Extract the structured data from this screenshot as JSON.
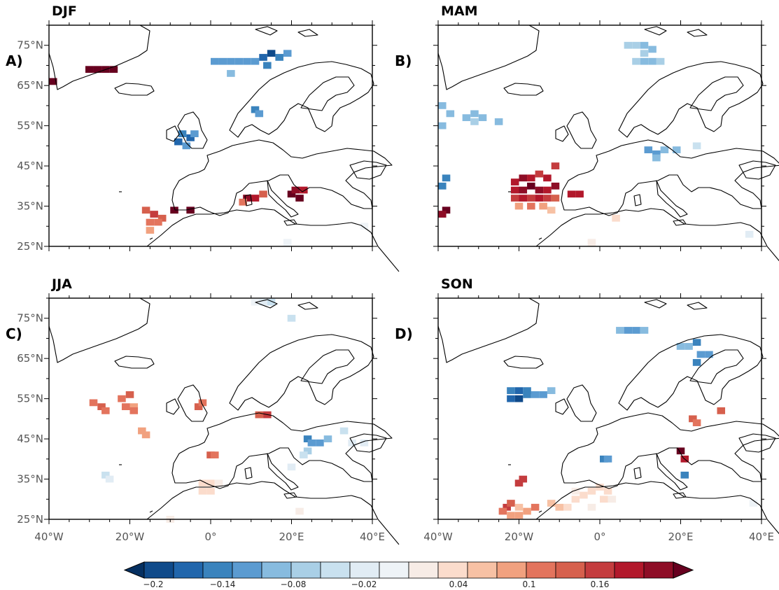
{
  "panels": [
    {
      "id": "A",
      "season": "DJF",
      "letter": "A)",
      "anomaly_cells": [
        {
          "lon": -39,
          "lat": 66,
          "v": 0.2
        },
        {
          "lon": -30,
          "lat": 69,
          "v": 0.2
        },
        {
          "lon": -28,
          "lat": 69,
          "v": 0.2
        },
        {
          "lon": -26,
          "lat": 69,
          "v": 0.2
        },
        {
          "lon": -24,
          "lat": 69,
          "v": 0.2
        },
        {
          "lon": 1,
          "lat": 71,
          "v": -0.12
        },
        {
          "lon": 3,
          "lat": 71,
          "v": -0.12
        },
        {
          "lon": 5,
          "lat": 71,
          "v": -0.12
        },
        {
          "lon": 7,
          "lat": 71,
          "v": -0.12
        },
        {
          "lon": 9,
          "lat": 71,
          "v": -0.12
        },
        {
          "lon": 11,
          "lat": 71,
          "v": -0.12
        },
        {
          "lon": 13,
          "lat": 72,
          "v": -0.16
        },
        {
          "lon": 15,
          "lat": 73,
          "v": -0.18
        },
        {
          "lon": 17,
          "lat": 72,
          "v": -0.14
        },
        {
          "lon": 14,
          "lat": 70,
          "v": -0.14
        },
        {
          "lon": 19,
          "lat": 73,
          "v": -0.12
        },
        {
          "lon": 5,
          "lat": 68,
          "v": -0.1
        },
        {
          "lon": 11,
          "lat": 59,
          "v": -0.14
        },
        {
          "lon": 12,
          "lat": 58,
          "v": -0.12
        },
        {
          "lon": -7,
          "lat": 53,
          "v": -0.14
        },
        {
          "lon": -5,
          "lat": 52,
          "v": -0.16
        },
        {
          "lon": -8,
          "lat": 51,
          "v": -0.16
        },
        {
          "lon": -6,
          "lat": 50,
          "v": -0.12
        },
        {
          "lon": -4,
          "lat": 53,
          "v": -0.12
        },
        {
          "lon": -16,
          "lat": 34,
          "v": 0.12
        },
        {
          "lon": -14,
          "lat": 33,
          "v": 0.14
        },
        {
          "lon": -12,
          "lat": 32,
          "v": 0.12
        },
        {
          "lon": -15,
          "lat": 31,
          "v": 0.1
        },
        {
          "lon": -13,
          "lat": 31,
          "v": 0.1
        },
        {
          "lon": -15,
          "lat": 29,
          "v": 0.08
        },
        {
          "lon": -9,
          "lat": 34,
          "v": 0.2
        },
        {
          "lon": -5,
          "lat": 34,
          "v": 0.2
        },
        {
          "lon": 9,
          "lat": 37,
          "v": 0.18
        },
        {
          "lon": 11,
          "lat": 37,
          "v": 0.16
        },
        {
          "lon": 8,
          "lat": 36,
          "v": 0.1
        },
        {
          "lon": 13,
          "lat": 38,
          "v": 0.12
        },
        {
          "lon": 20,
          "lat": 38,
          "v": 0.2
        },
        {
          "lon": 22,
          "lat": 37,
          "v": 0.2
        },
        {
          "lon": 21,
          "lat": 39,
          "v": 0.18
        },
        {
          "lon": 23,
          "lat": 39,
          "v": 0.16
        },
        {
          "lon": 19,
          "lat": 26,
          "v": -0.02
        },
        {
          "lon": 38,
          "lat": 30,
          "v": -0.02
        }
      ]
    },
    {
      "id": "B",
      "season": "MAM",
      "letter": "B)",
      "anomaly_cells": [
        {
          "lon": 7,
          "lat": 75,
          "v": -0.08
        },
        {
          "lon": 9,
          "lat": 75,
          "v": -0.08
        },
        {
          "lon": 11,
          "lat": 75,
          "v": -0.1
        },
        {
          "lon": 13,
          "lat": 74,
          "v": -0.1
        },
        {
          "lon": 11,
          "lat": 73,
          "v": -0.08
        },
        {
          "lon": 9,
          "lat": 71,
          "v": -0.08
        },
        {
          "lon": 11,
          "lat": 71,
          "v": -0.1
        },
        {
          "lon": 13,
          "lat": 71,
          "v": -0.1
        },
        {
          "lon": 15,
          "lat": 71,
          "v": -0.08
        },
        {
          "lon": -39,
          "lat": 60,
          "v": -0.1
        },
        {
          "lon": -37,
          "lat": 58,
          "v": -0.1
        },
        {
          "lon": -39,
          "lat": 55,
          "v": -0.1
        },
        {
          "lon": -33,
          "lat": 57,
          "v": -0.1
        },
        {
          "lon": -31,
          "lat": 58,
          "v": -0.1
        },
        {
          "lon": -29,
          "lat": 57,
          "v": -0.1
        },
        {
          "lon": -31,
          "lat": 56,
          "v": -0.08
        },
        {
          "lon": -25,
          "lat": 56,
          "v": -0.1
        },
        {
          "lon": 12,
          "lat": 49,
          "v": -0.12
        },
        {
          "lon": 14,
          "lat": 48,
          "v": -0.12
        },
        {
          "lon": 16,
          "lat": 49,
          "v": -0.1
        },
        {
          "lon": 19,
          "lat": 49,
          "v": -0.1
        },
        {
          "lon": 24,
          "lat": 50,
          "v": -0.06
        },
        {
          "lon": 14,
          "lat": 47,
          "v": -0.1
        },
        {
          "lon": -38,
          "lat": 42,
          "v": -0.14
        },
        {
          "lon": -39,
          "lat": 40,
          "v": -0.14
        },
        {
          "lon": -38,
          "lat": 34,
          "v": 0.2
        },
        {
          "lon": -39,
          "lat": 33,
          "v": 0.18
        },
        {
          "lon": -21,
          "lat": 41,
          "v": 0.16
        },
        {
          "lon": -19,
          "lat": 42,
          "v": 0.18
        },
        {
          "lon": -17,
          "lat": 42,
          "v": 0.16
        },
        {
          "lon": -15,
          "lat": 43,
          "v": 0.14
        },
        {
          "lon": -13,
          "lat": 42,
          "v": 0.16
        },
        {
          "lon": -11,
          "lat": 45,
          "v": 0.14
        },
        {
          "lon": -21,
          "lat": 39,
          "v": 0.16
        },
        {
          "lon": -19,
          "lat": 39,
          "v": 0.18
        },
        {
          "lon": -17,
          "lat": 40,
          "v": 0.2
        },
        {
          "lon": -15,
          "lat": 39,
          "v": 0.18
        },
        {
          "lon": -13,
          "lat": 39,
          "v": 0.16
        },
        {
          "lon": -11,
          "lat": 40,
          "v": 0.18
        },
        {
          "lon": -21,
          "lat": 37,
          "v": 0.14
        },
        {
          "lon": -19,
          "lat": 37,
          "v": 0.16
        },
        {
          "lon": -17,
          "lat": 37,
          "v": 0.14
        },
        {
          "lon": -15,
          "lat": 37,
          "v": 0.16
        },
        {
          "lon": -13,
          "lat": 37,
          "v": 0.14
        },
        {
          "lon": -11,
          "lat": 37,
          "v": 0.12
        },
        {
          "lon": -20,
          "lat": 35,
          "v": 0.08
        },
        {
          "lon": -17,
          "lat": 35,
          "v": 0.1
        },
        {
          "lon": -14,
          "lat": 35,
          "v": 0.08
        },
        {
          "lon": -12,
          "lat": 34,
          "v": 0.06
        },
        {
          "lon": -7,
          "lat": 38,
          "v": 0.16
        },
        {
          "lon": -5,
          "lat": 38,
          "v": 0.16
        },
        {
          "lon": 4,
          "lat": 32,
          "v": 0.04
        },
        {
          "lon": -2,
          "lat": 26,
          "v": 0.02
        },
        {
          "lon": 37,
          "lat": 28,
          "v": -0.04
        }
      ]
    },
    {
      "id": "C",
      "season": "JJA",
      "letter": "C)",
      "anomaly_cells": [
        {
          "lon": 13,
          "lat": 79,
          "v": -0.04
        },
        {
          "lon": 15,
          "lat": 79,
          "v": -0.06
        },
        {
          "lon": 11,
          "lat": 79,
          "v": -0.02
        },
        {
          "lon": 20,
          "lat": 75,
          "v": -0.06
        },
        {
          "lon": -29,
          "lat": 54,
          "v": 0.1
        },
        {
          "lon": -27,
          "lat": 53,
          "v": 0.12
        },
        {
          "lon": -26,
          "lat": 52,
          "v": 0.1
        },
        {
          "lon": -22,
          "lat": 55,
          "v": 0.1
        },
        {
          "lon": -20,
          "lat": 56,
          "v": 0.12
        },
        {
          "lon": -21,
          "lat": 53,
          "v": 0.1
        },
        {
          "lon": -19,
          "lat": 53,
          "v": 0.08
        },
        {
          "lon": -19,
          "lat": 52,
          "v": 0.1
        },
        {
          "lon": -17,
          "lat": 47,
          "v": 0.08
        },
        {
          "lon": -16,
          "lat": 46,
          "v": 0.08
        },
        {
          "lon": -3,
          "lat": 53,
          "v": 0.12
        },
        {
          "lon": -2,
          "lat": 54,
          "v": 0.1
        },
        {
          "lon": 12,
          "lat": 51,
          "v": 0.12
        },
        {
          "lon": 14,
          "lat": 51,
          "v": 0.14
        },
        {
          "lon": 0,
          "lat": 41,
          "v": 0.12
        },
        {
          "lon": 1,
          "lat": 41,
          "v": 0.1
        },
        {
          "lon": 24,
          "lat": 45,
          "v": -0.14
        },
        {
          "lon": 25,
          "lat": 44,
          "v": -0.12
        },
        {
          "lon": 27,
          "lat": 44,
          "v": -0.12
        },
        {
          "lon": 29,
          "lat": 45,
          "v": -0.1
        },
        {
          "lon": 24,
          "lat": 42,
          "v": -0.08
        },
        {
          "lon": 23,
          "lat": 41,
          "v": -0.06
        },
        {
          "lon": 33,
          "lat": 47,
          "v": -0.06
        },
        {
          "lon": 35,
          "lat": 44,
          "v": -0.04
        },
        {
          "lon": 38,
          "lat": 44,
          "v": -0.04
        },
        {
          "lon": 20,
          "lat": 38,
          "v": -0.04
        },
        {
          "lon": -26,
          "lat": 36,
          "v": -0.06
        },
        {
          "lon": -25,
          "lat": 35,
          "v": -0.04
        },
        {
          "lon": -2,
          "lat": 34,
          "v": 0.04
        },
        {
          "lon": 0,
          "lat": 34,
          "v": 0.04
        },
        {
          "lon": 2,
          "lat": 34,
          "v": 0.02
        },
        {
          "lon": -2,
          "lat": 32,
          "v": 0.04
        },
        {
          "lon": 0,
          "lat": 32,
          "v": 0.04
        },
        {
          "lon": 22,
          "lat": 27,
          "v": 0.02
        },
        {
          "lon": -10,
          "lat": 25,
          "v": 0.0
        }
      ]
    },
    {
      "id": "D",
      "season": "SON",
      "letter": "D)",
      "anomaly_cells": [
        {
          "lon": 5,
          "lat": 72,
          "v": -0.1
        },
        {
          "lon": 7,
          "lat": 72,
          "v": -0.12
        },
        {
          "lon": 9,
          "lat": 72,
          "v": -0.12
        },
        {
          "lon": 11,
          "lat": 72,
          "v": -0.1
        },
        {
          "lon": 20,
          "lat": 68,
          "v": -0.1
        },
        {
          "lon": 22,
          "lat": 68,
          "v": -0.1
        },
        {
          "lon": 24,
          "lat": 69,
          "v": -0.14
        },
        {
          "lon": 25,
          "lat": 66,
          "v": -0.12
        },
        {
          "lon": 27,
          "lat": 66,
          "v": -0.12
        },
        {
          "lon": 24,
          "lat": 64,
          "v": -0.14
        },
        {
          "lon": -22,
          "lat": 57,
          "v": -0.14
        },
        {
          "lon": -20,
          "lat": 57,
          "v": -0.16
        },
        {
          "lon": -18,
          "lat": 57,
          "v": -0.14
        },
        {
          "lon": -22,
          "lat": 55,
          "v": -0.16
        },
        {
          "lon": -20,
          "lat": 55,
          "v": -0.18
        },
        {
          "lon": -18,
          "lat": 56,
          "v": -0.14
        },
        {
          "lon": -16,
          "lat": 56,
          "v": -0.12
        },
        {
          "lon": -14,
          "lat": 56,
          "v": -0.12
        },
        {
          "lon": -12,
          "lat": 57,
          "v": -0.1
        },
        {
          "lon": 30,
          "lat": 52,
          "v": 0.12
        },
        {
          "lon": 23,
          "lat": 50,
          "v": 0.12
        },
        {
          "lon": 24,
          "lat": 49,
          "v": 0.1
        },
        {
          "lon": 20,
          "lat": 42,
          "v": 0.2
        },
        {
          "lon": 21,
          "lat": 40,
          "v": 0.16
        },
        {
          "lon": 21,
          "lat": 36,
          "v": -0.14
        },
        {
          "lon": 1,
          "lat": 40,
          "v": -0.14
        },
        {
          "lon": 2,
          "lat": 40,
          "v": -0.12
        },
        {
          "lon": -20,
          "lat": 34,
          "v": 0.14
        },
        {
          "lon": -19,
          "lat": 35,
          "v": 0.14
        },
        {
          "lon": -23,
          "lat": 28,
          "v": 0.14
        },
        {
          "lon": -22,
          "lat": 29,
          "v": 0.12
        },
        {
          "lon": -24,
          "lat": 27,
          "v": 0.1
        },
        {
          "lon": -22,
          "lat": 26,
          "v": 0.08
        },
        {
          "lon": -20,
          "lat": 26,
          "v": 0.08
        },
        {
          "lon": -18,
          "lat": 27,
          "v": 0.08
        },
        {
          "lon": -16,
          "lat": 28,
          "v": 0.1
        },
        {
          "lon": -20,
          "lat": 28,
          "v": 0.06
        },
        {
          "lon": -12,
          "lat": 29,
          "v": 0.06
        },
        {
          "lon": -10,
          "lat": 28,
          "v": 0.06
        },
        {
          "lon": -8,
          "lat": 28,
          "v": 0.04
        },
        {
          "lon": -6,
          "lat": 30,
          "v": 0.04
        },
        {
          "lon": -4,
          "lat": 31,
          "v": 0.04
        },
        {
          "lon": -2,
          "lat": 32,
          "v": 0.04
        },
        {
          "lon": 0,
          "lat": 33,
          "v": 0.04
        },
        {
          "lon": 2,
          "lat": 32,
          "v": 0.04
        },
        {
          "lon": 1,
          "lat": 30,
          "v": 0.04
        },
        {
          "lon": -6,
          "lat": 32,
          "v": 0.02
        },
        {
          "lon": -2,
          "lat": 28,
          "v": 0.02
        },
        {
          "lon": 3,
          "lat": 30,
          "v": 0.02
        },
        {
          "lon": 38,
          "lat": 29,
          "v": -0.02
        }
      ]
    }
  ],
  "lat_labels": [
    "75°N",
    "65°N",
    "55°N",
    "45°N",
    "35°N",
    "25°N"
  ],
  "lat_values": [
    75,
    65,
    55,
    45,
    35,
    25
  ],
  "lon_labels": [
    "40°W",
    "20°W",
    "0°",
    "20°E",
    "40°E"
  ],
  "lon_values": [
    -40,
    -20,
    0,
    20,
    40
  ],
  "extent": {
    "lon_min": -40,
    "lon_max": 40,
    "lat_min": 25,
    "lat_max": 80
  },
  "colorbar": {
    "min": -0.22,
    "max": 0.22,
    "tick_labels": [
      "-0.2",
      "-0.14",
      "-0.08",
      "-0.02",
      "0.04",
      "0.1",
      "0.16"
    ],
    "tick_values": [
      -0.2,
      -0.14,
      -0.08,
      -0.02,
      0.04,
      0.1,
      0.16
    ],
    "colors": [
      "#053061",
      "#0f4a8a",
      "#2166ac",
      "#3a83bd",
      "#5b9bd1",
      "#87bbdf",
      "#a9cfe6",
      "#c9e1ef",
      "#e1ecf4",
      "#eef3f7",
      "#f7ece6",
      "#fbdccc",
      "#f7c1a4",
      "#f1a17f",
      "#e3745d",
      "#d6604d",
      "#c43c3e",
      "#b2182b",
      "#8e0d26",
      "#67001f"
    ]
  }
}
